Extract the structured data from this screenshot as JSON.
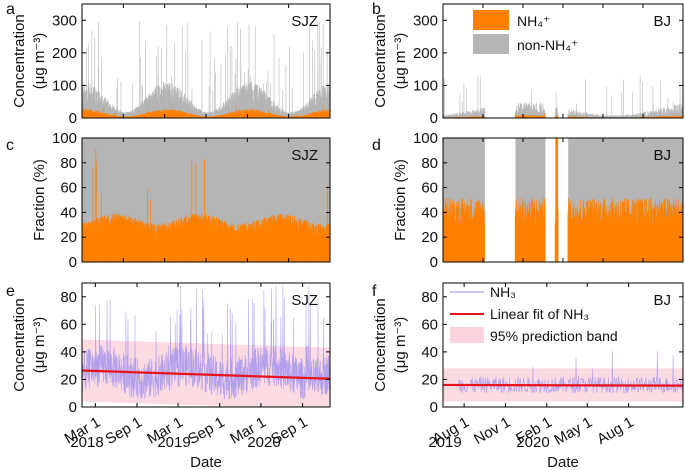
{
  "colors": {
    "nh4": "#ff8000",
    "non_nh4": "#b5b5b5",
    "nh3_line": "#9a8cf0",
    "fit": "#e8131b",
    "band": "#fbd3dc"
  },
  "chart_data": [
    {
      "id": "a",
      "panel_letter": "a",
      "type": "area",
      "site": "SJZ",
      "ylabel_main": "Concentration",
      "ylabel_unit": "(μg m⁻³)",
      "ylim": [
        0,
        350
      ],
      "yticks": [
        "0",
        "100",
        "200",
        "300"
      ],
      "ytick_values": [
        0,
        100,
        200,
        300
      ],
      "x_range": [
        "2018-01-01",
        "2020-12-31"
      ],
      "series": [
        {
          "name": "NH₄⁺",
          "typical_value": 18,
          "peak": 60
        },
        {
          "name": "non-NH₄⁺",
          "typical_value": 55,
          "peak": 335
        }
      ]
    },
    {
      "id": "b",
      "panel_letter": "b",
      "type": "area",
      "site": "BJ",
      "ylabel_main": "Concentration",
      "ylabel_unit": "(μg m⁻³)",
      "ylim": [
        0,
        350
      ],
      "yticks": [
        "0",
        "100",
        "200",
        "300"
      ],
      "ytick_values": [
        0,
        100,
        200,
        300
      ],
      "x_range": [
        "2019-08-01",
        "2020-11-30"
      ],
      "data_gaps": [
        [
          "2019-10-25",
          "2019-12-25"
        ],
        [
          "2020-02-25",
          "2020-03-15"
        ],
        [
          "2020-03-22",
          "2020-04-10"
        ]
      ],
      "legend": [
        "NH₄⁺",
        "non-NH₄⁺"
      ],
      "series": [
        {
          "name": "NH₄⁺",
          "typical_value": 6,
          "peak": 30
        },
        {
          "name": "non-NH₄⁺",
          "typical_value": 25,
          "peak": 245
        }
      ]
    },
    {
      "id": "c",
      "panel_letter": "c",
      "type": "area",
      "site": "SJZ",
      "ylabel": "Fraction (%)",
      "ylim": [
        0,
        100
      ],
      "yticks": [
        "0",
        "20",
        "40",
        "60",
        "80",
        "100"
      ],
      "ytick_values": [
        0,
        20,
        40,
        60,
        80,
        100
      ],
      "x_range": [
        "2018-01-01",
        "2020-12-31"
      ],
      "series": [
        {
          "name": "NH₄⁺",
          "typical_value": 27,
          "peak": 92
        },
        {
          "name": "non-NH₄⁺",
          "typical_value": 73
        }
      ]
    },
    {
      "id": "d",
      "panel_letter": "d",
      "type": "area",
      "site": "BJ",
      "ylabel": "Fraction (%)",
      "ylim": [
        0,
        100
      ],
      "yticks": [
        "0",
        "20",
        "40",
        "60",
        "80",
        "100"
      ],
      "ytick_values": [
        0,
        20,
        40,
        60,
        80,
        100
      ],
      "x_range": [
        "2019-08-01",
        "2020-11-30"
      ],
      "data_gaps": [
        [
          "2019-10-25",
          "2019-12-25"
        ],
        [
          "2020-02-25",
          "2020-03-15"
        ],
        [
          "2020-03-22",
          "2020-04-10"
        ]
      ],
      "series": [
        {
          "name": "NH₄⁺",
          "typical_value": 40,
          "peak": 100
        },
        {
          "name": "non-NH₄⁺",
          "typical_value": 60
        }
      ]
    },
    {
      "id": "e",
      "panel_letter": "e",
      "type": "line",
      "site": "SJZ",
      "ylabel_main": "Concentration",
      "ylabel_unit": "(μg m⁻³)",
      "ylim": [
        0,
        90
      ],
      "yticks": [
        "0",
        "20",
        "40",
        "60",
        "80"
      ],
      "ytick_values": [
        0,
        20,
        40,
        60,
        80
      ],
      "x_range": [
        "2018-01-01",
        "2020-12-31"
      ],
      "xticks": [
        {
          "label": "Mar 1",
          "date": "2018-03-01"
        },
        {
          "label": "Sep 1",
          "date": "2018-09-01"
        },
        {
          "label": "Mar 1",
          "date": "2019-03-01"
        },
        {
          "label": "Sep 1",
          "date": "2019-09-01"
        },
        {
          "label": "Mar 1",
          "date": "2020-03-01"
        },
        {
          "label": "Sep 1",
          "date": "2020-09-01"
        }
      ],
      "years": [
        "2018",
        "2019",
        "2020"
      ],
      "xlabel": "Date",
      "nh3_typical": 25,
      "fit_line": {
        "start_date": "2018-01-01",
        "start_value": 26.5,
        "end_date": "2020-12-31",
        "end_value": 20.5
      },
      "prediction_band": {
        "upper_start": 49,
        "upper_end": 43,
        "lower_start": 4,
        "lower_end": -2
      }
    },
    {
      "id": "f",
      "panel_letter": "f",
      "type": "line",
      "site": "BJ",
      "ylabel_main": "Concentration",
      "ylabel_unit": "(μg m⁻³)",
      "ylim": [
        0,
        90
      ],
      "yticks": [
        "0",
        "20",
        "40",
        "60",
        "80"
      ],
      "ytick_values": [
        0,
        20,
        40,
        60,
        80
      ],
      "x_range": [
        "2019-06-15",
        "2020-11-30"
      ],
      "xticks": [
        {
          "label": "Aug 1",
          "date": "2019-08-01"
        },
        {
          "label": "Nov 1",
          "date": "2019-11-01"
        },
        {
          "label": "Feb 1",
          "date": "2020-02-01"
        },
        {
          "label": "May 1",
          "date": "2020-05-01"
        },
        {
          "label": "Aug 1",
          "date": "2020-08-01"
        }
      ],
      "years": [
        "2019",
        "2020"
      ],
      "xlabel": "Date",
      "nh3_typical": 16,
      "legend": [
        "NH₃",
        "Linear fit of NH₃",
        "95% prediction band"
      ],
      "fit_line": {
        "start_date": "2019-06-15",
        "start_value": 16,
        "end_date": "2020-11-30",
        "end_value": 15.5
      },
      "prediction_band": {
        "upper_start": 28,
        "upper_end": 28,
        "lower_start": 4,
        "lower_end": 4
      }
    }
  ]
}
